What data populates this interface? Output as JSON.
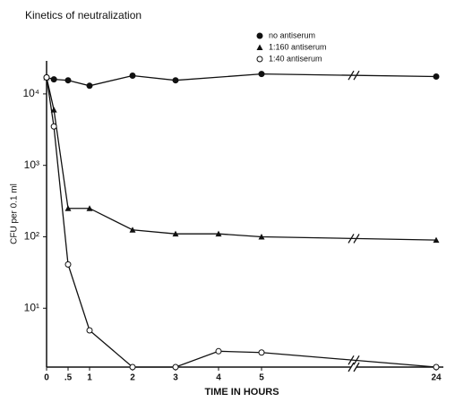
{
  "chart_data": {
    "type": "line",
    "title": "Kinetics of neutralization",
    "x_label": "TIME IN HOURS",
    "y_label": "CFU per 0.1 ml",
    "log_y": true,
    "xbreak": [
      5,
      24
    ],
    "xlim": [
      0,
      24
    ],
    "ylim": [
      1.5,
      29000
    ],
    "xticks": [
      0,
      {
        "value": 0.5,
        "label": ".5"
      },
      1,
      2,
      3,
      4,
      5,
      24
    ],
    "yticks": [
      {
        "value": 10,
        "label": "10¹"
      },
      {
        "value": 100,
        "label": "10²"
      },
      {
        "value": 1000,
        "label": "10³"
      },
      {
        "value": 10000,
        "label": "10⁴"
      }
    ],
    "x": [
      0,
      0.17,
      0.5,
      1,
      2,
      3,
      4,
      5,
      24
    ],
    "series": [
      {
        "name": "no antiserum",
        "color": "#111111",
        "marker": "filled-circle",
        "values": [
          17000,
          16000,
          15500,
          13000,
          18000,
          15500,
          null,
          19000,
          17500
        ]
      },
      {
        "name": "1:160 antiserum",
        "color": "#111111",
        "marker": "filled-triangle",
        "values": [
          17000,
          6000,
          250,
          250,
          125,
          110,
          110,
          100,
          90
        ]
      },
      {
        "name": "1:40 antiserum",
        "color": "#111111",
        "marker": "open-circle",
        "values": [
          17000,
          3500,
          41,
          4.9,
          1.5,
          1.5,
          2.5,
          2.4,
          1.5
        ]
      }
    ]
  }
}
